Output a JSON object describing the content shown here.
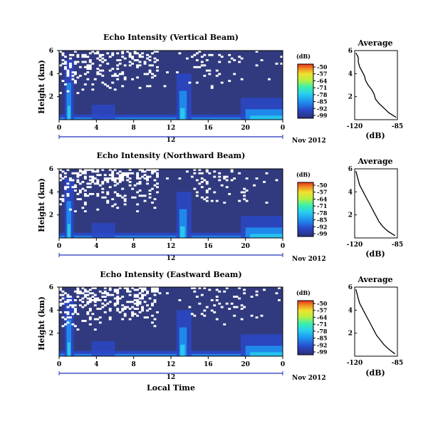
{
  "chart_data": [
    {
      "type": "heatmap",
      "title": "Echo Intensity (Vertical Beam)",
      "ylabel": "Height (km)",
      "xlabel": "",
      "x_ticks": [
        "0",
        "4",
        "8",
        "12",
        "16",
        "20",
        "0"
      ],
      "y_ticks": [
        "6",
        "4",
        "2"
      ],
      "date_marker": "12",
      "date_label": "Nov 2012",
      "xlim": [
        0,
        24
      ],
      "ylim": [
        0,
        6
      ],
      "colorbar": {
        "unit": "(dB)",
        "ticks": [
          "-50",
          "-57",
          "-64",
          "-71",
          "-78",
          "-85",
          "-92",
          "-99"
        ]
      },
      "white_density": 0.28,
      "profile": {
        "title": "Average",
        "xlabel": "(dB)",
        "x_ticks": [
          "-120",
          "-85"
        ],
        "y_ticks": [
          "6",
          "4",
          "2"
        ],
        "xlim": [
          -120,
          -85
        ],
        "height_km": [
          0.2,
          0.6,
          1.0,
          1.4,
          1.8,
          2.2,
          2.6,
          3.0,
          3.4,
          3.8,
          4.2,
          4.6,
          5.0,
          5.4,
          5.8
        ],
        "values_db": [
          -86,
          -92,
          -96,
          -100,
          -103,
          -104,
          -106,
          -109,
          -111,
          -112,
          -114,
          -116,
          -117,
          -117,
          -119
        ]
      }
    },
    {
      "type": "heatmap",
      "title": "Echo Intensity (Northward Beam)",
      "ylabel": "Height (km)",
      "xlabel": "",
      "x_ticks": [
        "0",
        "4",
        "8",
        "12",
        "16",
        "20",
        "0"
      ],
      "y_ticks": [
        "6",
        "4",
        "2"
      ],
      "date_marker": "12",
      "date_label": "Nov 2012",
      "xlim": [
        0,
        24
      ],
      "ylim": [
        0,
        6
      ],
      "colorbar": {
        "unit": "(dB)",
        "ticks": [
          "-50",
          "-57",
          "-64",
          "-71",
          "-78",
          "-85",
          "-92",
          "-99"
        ]
      },
      "white_density": 0.38,
      "profile": {
        "title": "Average",
        "xlabel": "(dB)",
        "x_ticks": [
          "-120",
          "-85"
        ],
        "y_ticks": [
          "6",
          "4",
          "2"
        ],
        "xlim": [
          -120,
          -85
        ],
        "height_km": [
          0.2,
          0.6,
          1.0,
          1.4,
          1.8,
          2.2,
          2.6,
          3.0,
          3.4,
          3.8,
          4.2,
          4.6,
          5.0,
          5.4,
          5.8
        ],
        "values_db": [
          -87,
          -93,
          -97,
          -100,
          -102,
          -104,
          -106,
          -108,
          -110,
          -112,
          -114,
          -116,
          -117,
          -118,
          -119
        ]
      }
    },
    {
      "type": "heatmap",
      "title": "Echo Intensity (Eastward Beam)",
      "ylabel": "Height (km)",
      "xlabel": "Local Time",
      "x_ticks": [
        "0",
        "4",
        "8",
        "12",
        "16",
        "20",
        "0"
      ],
      "y_ticks": [
        "6",
        "4",
        "2"
      ],
      "date_marker": "12",
      "date_label": "Nov 2012",
      "xlim": [
        0,
        24
      ],
      "ylim": [
        0,
        6
      ],
      "colorbar": {
        "unit": "(dB)",
        "ticks": [
          "-50",
          "-57",
          "-64",
          "-71",
          "-78",
          "-85",
          "-92",
          "-99"
        ]
      },
      "white_density": 0.42,
      "profile": {
        "title": "Average",
        "xlabel": "(dB)",
        "x_ticks": [
          "-120",
          "-85"
        ],
        "y_ticks": [
          "6",
          "4",
          "2"
        ],
        "xlim": [
          -120,
          -85
        ],
        "height_km": [
          0.2,
          0.6,
          1.0,
          1.4,
          1.8,
          2.2,
          2.6,
          3.0,
          3.4,
          3.8,
          4.2,
          4.6,
          5.0,
          5.4,
          5.8
        ],
        "values_db": [
          -87,
          -92,
          -96,
          -99,
          -102,
          -104,
          -106,
          -108,
          -110,
          -112,
          -114,
          -116,
          -117,
          -118,
          -119
        ]
      }
    }
  ]
}
